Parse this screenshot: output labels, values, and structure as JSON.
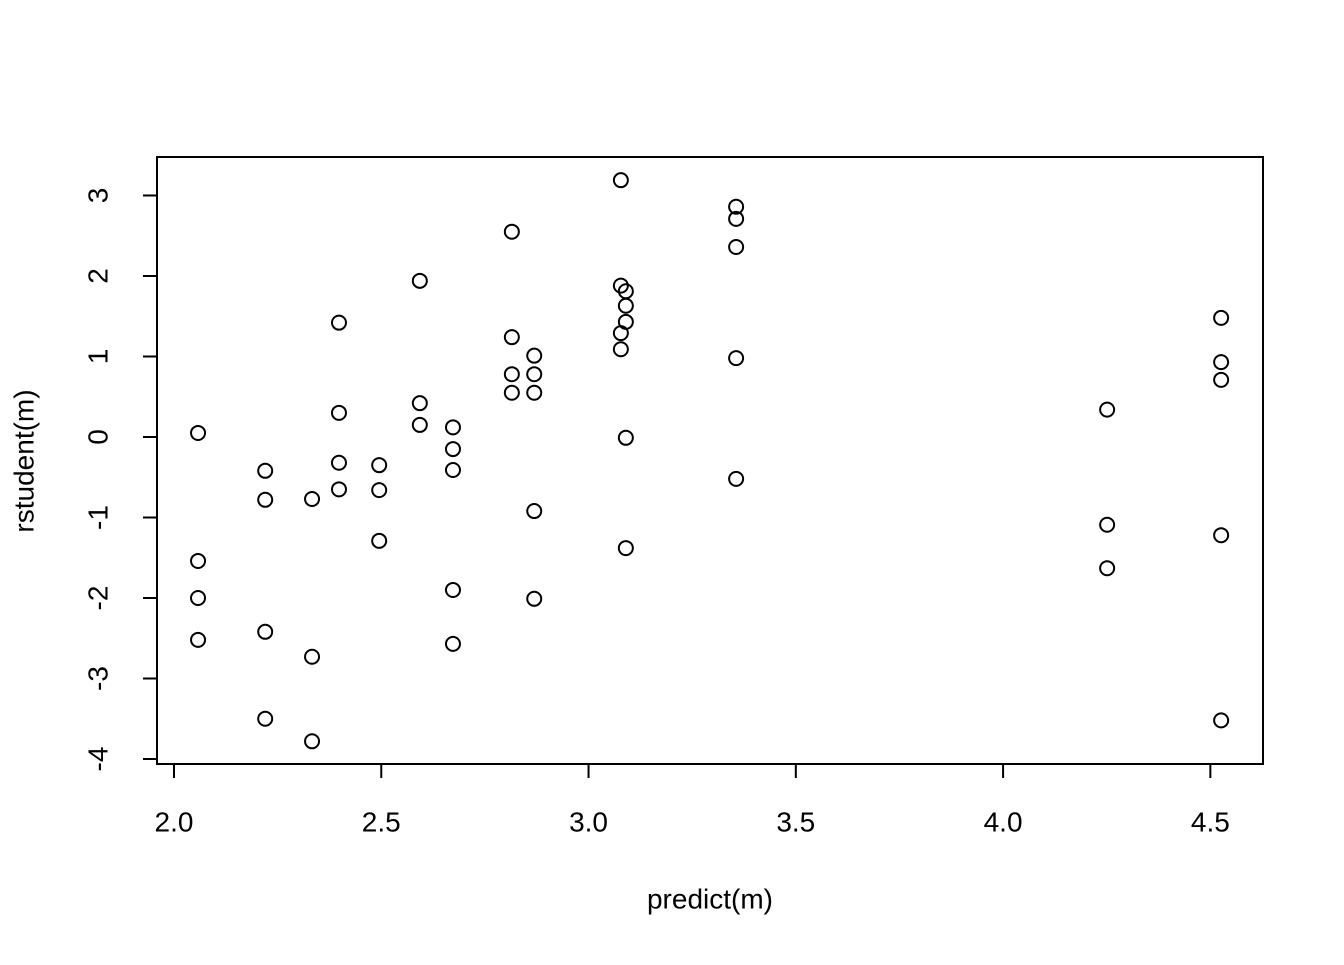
{
  "chart_data": {
    "type": "scatter",
    "xlabel": "predict(m)",
    "ylabel": "rstudent(m)",
    "xlim": [
      1.959,
      4.627
    ],
    "ylim": [
      -4.062,
      3.478
    ],
    "xticks": [
      {
        "value": 2.0,
        "label": "2.0"
      },
      {
        "value": 2.5,
        "label": "2.5"
      },
      {
        "value": 3.0,
        "label": "3.0"
      },
      {
        "value": 3.5,
        "label": "3.5"
      },
      {
        "value": 4.0,
        "label": "4.0"
      },
      {
        "value": 4.5,
        "label": "4.5"
      }
    ],
    "yticks": [
      -4,
      -3,
      -2,
      -1,
      0,
      1,
      2,
      3
    ],
    "series": [
      {
        "color": "#000000",
        "x": [
          2.058,
          2.058,
          2.058,
          2.058,
          2.22,
          2.22,
          2.22,
          2.22,
          2.333,
          2.333,
          2.333,
          2.398,
          2.398,
          2.398,
          2.398,
          2.495,
          2.495,
          2.495,
          2.593,
          2.593,
          2.593,
          2.673,
          2.673,
          2.673,
          2.673,
          2.673,
          2.815,
          2.815,
          2.815,
          2.815,
          2.869,
          2.869,
          2.869,
          2.869,
          2.869,
          3.078,
          3.078,
          3.078,
          3.078,
          3.09,
          3.09,
          3.09,
          3.09,
          3.09,
          3.356,
          3.356,
          3.356,
          3.356,
          3.356,
          4.251,
          4.251,
          4.251,
          4.526,
          4.526,
          4.526,
          4.526,
          4.526
        ],
        "y": [
          0.05,
          -1.54,
          -2.0,
          -2.52,
          -0.42,
          -0.78,
          -2.42,
          -3.5,
          -0.77,
          -2.73,
          -3.78,
          1.42,
          0.3,
          -0.32,
          -0.65,
          -0.35,
          -0.66,
          -1.29,
          1.94,
          0.42,
          0.15,
          0.12,
          -0.15,
          -0.41,
          -1.9,
          -2.57,
          2.55,
          1.24,
          0.78,
          0.55,
          1.01,
          0.78,
          0.55,
          -0.92,
          -2.01,
          3.19,
          1.88,
          1.29,
          1.09,
          1.81,
          1.63,
          1.43,
          -0.01,
          -1.38,
          2.86,
          2.71,
          2.36,
          0.98,
          -0.52,
          0.34,
          -1.09,
          -1.63,
          1.48,
          0.93,
          0.71,
          -1.22,
          -3.52
        ]
      }
    ]
  }
}
